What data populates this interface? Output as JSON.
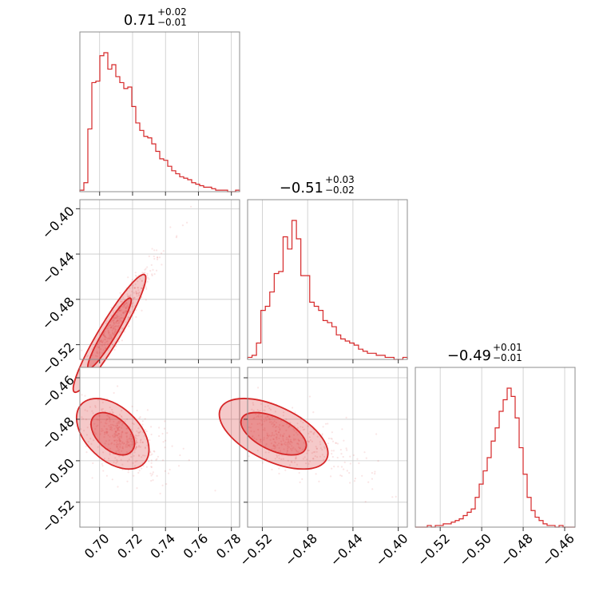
{
  "chart_data": {
    "type": "corner",
    "color": "#d62728",
    "grid": true,
    "parameters": [
      {
        "title": {
          "value": "0.71",
          "plus": "+0.02",
          "minus": "−0.01"
        },
        "range": [
          0.688,
          0.785
        ],
        "ticks": [
          0.7,
          0.72,
          0.74,
          0.76,
          0.78
        ],
        "tick_labels": [
          "0.70",
          "0.72",
          "0.74",
          "0.76",
          "0.78"
        ],
        "hist_counts": [
          1,
          6,
          42,
          73,
          74,
          91,
          93,
          82,
          85,
          77,
          73,
          69,
          70,
          57,
          46,
          41,
          37,
          36,
          32,
          27,
          22,
          21,
          17,
          14,
          12,
          10,
          9,
          8,
          6,
          5,
          4,
          3,
          3,
          2,
          1,
          1,
          1,
          0,
          0,
          1
        ]
      },
      {
        "title": {
          "value": "−0.51",
          "plus": "+0.03",
          "minus": "−0.02"
        },
        "range": [
          -0.533,
          -0.392
        ],
        "ticks": [
          -0.52,
          -0.48,
          -0.44,
          -0.4
        ],
        "tick_labels": [
          "−0.52",
          "−0.48",
          "−0.44",
          "−0.40"
        ],
        "hist_counts": [
          1,
          2,
          8,
          24,
          26,
          33,
          42,
          43,
          60,
          54,
          68,
          59,
          41,
          41,
          28,
          26,
          24,
          19,
          18,
          16,
          12,
          10,
          9,
          8,
          7,
          5,
          4,
          3,
          3,
          2,
          2,
          1,
          1,
          0,
          0,
          1
        ]
      },
      {
        "title": {
          "value": "−0.49",
          "plus": "+0.01",
          "minus": "−0.01"
        },
        "range": [
          -0.532,
          -0.455
        ],
        "ticks": [
          -0.52,
          -0.5,
          -0.48,
          -0.46
        ],
        "tick_labels": [
          "−0.52",
          "−0.50",
          "−0.48",
          "−0.46"
        ],
        "hist_counts": [
          0,
          0,
          0,
          1,
          0,
          1,
          1,
          2,
          2,
          3,
          4,
          5,
          7,
          9,
          11,
          18,
          26,
          34,
          42,
          52,
          60,
          70,
          77,
          84,
          79,
          66,
          48,
          32,
          18,
          10,
          6,
          4,
          2,
          1,
          1,
          0,
          1,
          0,
          0,
          0
        ]
      }
    ],
    "pairs": [
      {
        "x": 0,
        "y": 1,
        "center": [
          0.706,
          -0.51
        ],
        "sd": [
          0.011,
          0.026
        ],
        "corr": 0.94,
        "skew": true
      },
      {
        "x": 0,
        "y": 2,
        "center": [
          0.708,
          -0.487
        ],
        "sd": [
          0.011,
          0.0085
        ],
        "corr": -0.45,
        "skew": true
      },
      {
        "x": 1,
        "y": 2,
        "center": [
          -0.51,
          -0.487
        ],
        "sd": [
          0.024,
          0.0085
        ],
        "corr": -0.55,
        "skew": true
      }
    ]
  }
}
